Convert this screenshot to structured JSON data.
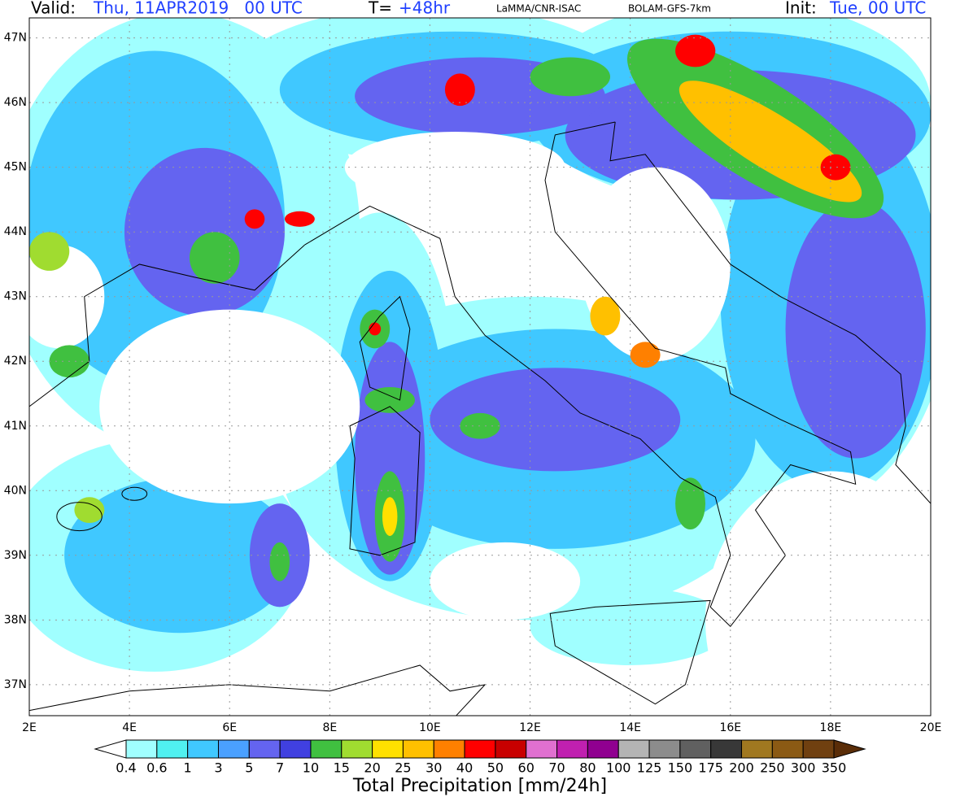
{
  "header": {
    "valid_label": "Valid:",
    "valid_time": "Thu, 11APR2019   00 UTC",
    "lead_label": "T=",
    "lead_time": "+48hr",
    "institution": "LaMMA/CNR-ISAC",
    "model": "BOLAM-GFS-7km",
    "init_label": "Init:",
    "init_time": "Tue, 00 UTC"
  },
  "map": {
    "lonlim": [
      2,
      20
    ],
    "latlim": [
      36.52,
      47.31
    ],
    "lon_ticks": [
      {
        "value": 2,
        "label": "2E"
      },
      {
        "value": 4,
        "label": "4E"
      },
      {
        "value": 6,
        "label": "6E"
      },
      {
        "value": 8,
        "label": "8E"
      },
      {
        "value": 10,
        "label": "10E"
      },
      {
        "value": 12,
        "label": "12E"
      },
      {
        "value": 14,
        "label": "14E"
      },
      {
        "value": 16,
        "label": "16E"
      },
      {
        "value": 18,
        "label": "18E"
      },
      {
        "value": 20,
        "label": "20E"
      }
    ],
    "lat_ticks": [
      {
        "value": 37,
        "label": "37N"
      },
      {
        "value": 38,
        "label": "38N"
      },
      {
        "value": 39,
        "label": "39N"
      },
      {
        "value": 40,
        "label": "40N"
      },
      {
        "value": 41,
        "label": "41N"
      },
      {
        "value": 42,
        "label": "42N"
      },
      {
        "value": 43,
        "label": "43N"
      },
      {
        "value": 44,
        "label": "44N"
      },
      {
        "value": 45,
        "label": "45N"
      },
      {
        "value": 46,
        "label": "46N"
      },
      {
        "value": 47,
        "label": "47N"
      }
    ],
    "grid": true
  },
  "colorbar": {
    "title": "Total Precipitation [mm/24h]",
    "levels": [
      0.4,
      0.6,
      1,
      3,
      5,
      7,
      10,
      15,
      20,
      25,
      30,
      40,
      50,
      60,
      70,
      80,
      100,
      125,
      150,
      175,
      200,
      250,
      300,
      350
    ],
    "colors": [
      "#ffffff",
      "#a0ffff",
      "#50f0f0",
      "#40c8ff",
      "#4aa0ff",
      "#6464f0",
      "#4040e0",
      "#40c040",
      "#a0dc30",
      "#ffe000",
      "#ffc000",
      "#ff8000",
      "#ff0000",
      "#c80000",
      "#e070d0",
      "#c020b0",
      "#900090",
      "#b4b4b4",
      "#8c8c8c",
      "#606060",
      "#383838",
      "#a07820",
      "#8b5a14",
      "#704010",
      "#5a2d08"
    ]
  }
}
